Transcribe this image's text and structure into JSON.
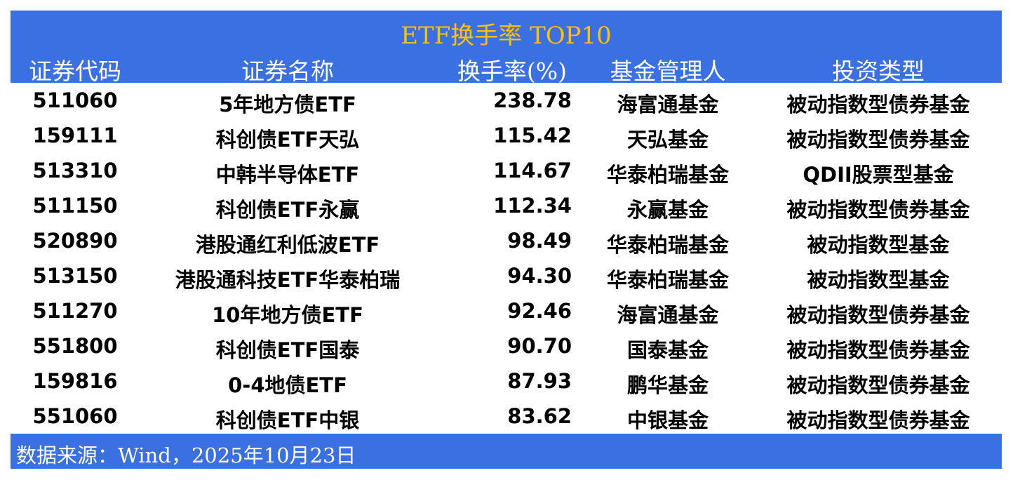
{
  "title": "ETF换手率 TOP10",
  "headers": [
    "证券代码",
    "证券名称",
    "换手率(%)",
    "基金管理人",
    "投资类型"
  ],
  "rows": [
    [
      "511060",
      "5年地方债ETF",
      "238.78",
      "海富通基金",
      "被动指数型债券基金"
    ],
    [
      "159111",
      "科创债ETF天弘",
      "115.42",
      "天弘基金",
      "被动指数型债券基金"
    ],
    [
      "513310",
      "中韩半导体ETF",
      "114.67",
      "华泰柏瑞基金",
      "QDII股票型基金"
    ],
    [
      "511150",
      "科创债ETF永赢",
      "112.34",
      "永赢基金",
      "被动指数型债券基金"
    ],
    [
      "520890",
      "港股通红利低波ETF",
      "98.49",
      "华泰柏瑞基金",
      "被动指数型基金"
    ],
    [
      "513150",
      "港股通科技ETF华泰柏瑞",
      "94.30",
      "华泰柏瑞基金",
      "被动指数型基金"
    ],
    [
      "511270",
      "10年地方债ETF",
      "92.46",
      "海富通基金",
      "被动指数型债券基金"
    ],
    [
      "551800",
      "科创债ETF国泰",
      "90.70",
      "国泰基金",
      "被动指数型债券基金"
    ],
    [
      "159816",
      "0-4地债ETF",
      "87.93",
      "鹏华基金",
      "被动指数型债券基金"
    ],
    [
      "551060",
      "科创债ETF中银",
      "83.62",
      "中银基金",
      "被动指数型债券基金"
    ]
  ],
  "source": "数据来源：Wind，2025年10月23日",
  "colors": {
    "band": "#3a70e2",
    "title": "#ffc000"
  }
}
